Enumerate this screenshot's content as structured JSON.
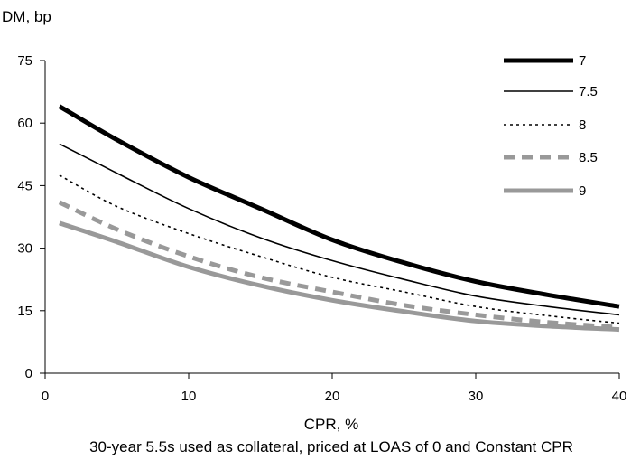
{
  "chart_data": {
    "type": "line",
    "ylabel": "DM, bp",
    "xlabel": "CPR, %",
    "caption": "30-year 5.5s used as collateral, priced at LOAS of 0 and Constant CPR",
    "xlim": [
      0,
      40
    ],
    "ylim": [
      0,
      75
    ],
    "x_ticks": [
      "0",
      "10",
      "20",
      "30",
      "40"
    ],
    "y_ticks": [
      "0",
      "15",
      "30",
      "45",
      "60",
      "75"
    ],
    "grid": false,
    "legend_position": "top-right",
    "x": [
      1,
      5,
      10,
      15,
      20,
      25,
      30,
      35,
      40
    ],
    "series": [
      {
        "name": "7",
        "values": [
          64,
          56,
          47,
          39.5,
          32,
          26.5,
          22,
          18.8,
          16
        ],
        "color": "#000000",
        "style": "solid-thick"
      },
      {
        "name": "7.5",
        "values": [
          55,
          48,
          39.5,
          32.5,
          27,
          22.5,
          18.5,
          16,
          14
        ],
        "color": "#000000",
        "style": "solid-thin"
      },
      {
        "name": "8",
        "values": [
          47.5,
          40,
          33.5,
          28,
          23,
          19.5,
          16,
          13.8,
          12
        ],
        "color": "#000000",
        "style": "dotted"
      },
      {
        "name": "8.5",
        "values": [
          41,
          34.5,
          28,
          23,
          19.5,
          16.3,
          14,
          12.2,
          11
        ],
        "color": "#999999",
        "style": "dashed-thick"
      },
      {
        "name": "9",
        "values": [
          36,
          31.5,
          25.5,
          21,
          17.5,
          14.8,
          12.5,
          11.3,
          10.5
        ],
        "color": "#999999",
        "style": "solid-thick"
      }
    ]
  }
}
